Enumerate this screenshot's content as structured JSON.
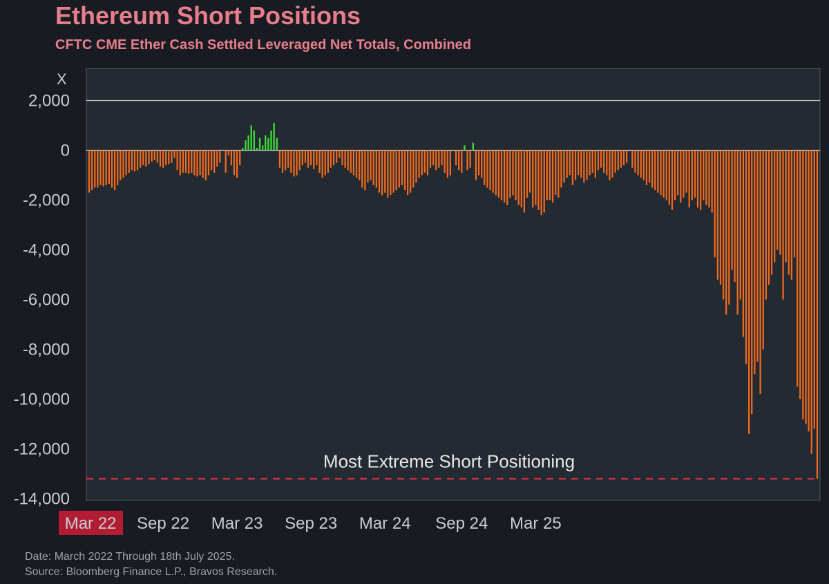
{
  "title": "Ethereum Short Positions",
  "subtitle": "CFTC CME Ether Cash Settled Leveraged Net Totals, Combined",
  "footer": {
    "date": "Date: March 2022 Through 18th July 2025.",
    "source": "Source: Bloomberg Finance L.P., Bravos Research."
  },
  "colors": {
    "background": "#181c22",
    "plot_background": "#242a31",
    "title": "#e87e8c",
    "negative_bar": "#ef6a1e",
    "positive_bar": "#3ee03a",
    "reference_line": "#d83048",
    "highlight_tick_bg": "#b31d34"
  },
  "chart_data": {
    "type": "bar",
    "title": "Ethereum Short Positions",
    "subtitle": "CFTC CME Ether Cash Settled Leveraged Net Totals, Combined",
    "ylabel": "X",
    "ylim": [
      -14000,
      3000
    ],
    "yticks": [
      2000,
      0,
      -2000,
      -4000,
      -6000,
      -8000,
      -10000,
      -12000,
      -14000
    ],
    "ytick_labels": [
      "2,000",
      "0",
      "-2,000",
      "-4,000",
      "-6,000",
      "-8,000",
      "-10,000",
      "-12,000",
      "-14,000"
    ],
    "xticks": [
      {
        "label": "Mar 22",
        "index": 0,
        "highlighted": true
      },
      {
        "label": "Sep 22",
        "index": 26
      },
      {
        "label": "Mar 23",
        "index": 52
      },
      {
        "label": "Sep 23",
        "index": 78
      },
      {
        "label": "Mar 24",
        "index": 104
      },
      {
        "label": "Sep 24",
        "index": 131
      },
      {
        "label": "Mar 25",
        "index": 157
      }
    ],
    "annotation": {
      "text": "Most Extreme Short Positioning",
      "value": -13200
    },
    "weekly_values": [
      -1700,
      -1600,
      -1500,
      -1500,
      -1400,
      -1450,
      -1400,
      -1350,
      -1500,
      -1600,
      -1400,
      -1200,
      -1100,
      -1000,
      -900,
      -800,
      -850,
      -800,
      -700,
      -600,
      -650,
      -550,
      -450,
      -400,
      -500,
      -650,
      -700,
      -600,
      -550,
      -500,
      -300,
      -800,
      -1000,
      -900,
      -900,
      -950,
      -900,
      -1000,
      -1050,
      -1000,
      -1100,
      -1200,
      -1000,
      -800,
      -900,
      -650,
      -500,
      0,
      -900,
      -200,
      -600,
      -1000,
      -1100,
      -600,
      100,
      400,
      600,
      1000,
      800,
      100,
      500,
      200,
      600,
      500,
      800,
      1100,
      500,
      -700,
      -900,
      -800,
      -700,
      -900,
      -1050,
      -1000,
      -800,
      -600,
      -500,
      -700,
      -600,
      -750,
      -600,
      -900,
      -1100,
      -1000,
      -900,
      -700,
      -600,
      -500,
      -300,
      -600,
      -700,
      -800,
      -900,
      -1000,
      -1100,
      -1200,
      -1500,
      -1600,
      -1300,
      -1200,
      -1400,
      -1500,
      -1700,
      -1800,
      -1700,
      -1900,
      -1800,
      -1700,
      -1600,
      -1500,
      -1400,
      -1600,
      -1800,
      -1700,
      -1500,
      -1300,
      -1100,
      -1000,
      -900,
      -1000,
      -700,
      -600,
      -800,
      -700,
      -600,
      -900,
      -1100,
      -1000,
      0,
      -600,
      -800,
      -900,
      200,
      -800,
      -700,
      300,
      -1200,
      -1000,
      -1100,
      -1400,
      -1500,
      -1600,
      -1700,
      -1800,
      -1900,
      -2000,
      -2100,
      -2200,
      -1900,
      -1800,
      -2000,
      -2200,
      -2300,
      -2500,
      -1900,
      -1700,
      -2300,
      -2200,
      -2400,
      -2600,
      -2500,
      -2000,
      -2000,
      -2100,
      -1800,
      -1900,
      -1500,
      -1300,
      -1100,
      -1000,
      -1400,
      -1200,
      -1000,
      -1100,
      -1300,
      -1200,
      -1000,
      -900,
      -1100,
      -800,
      -700,
      -900,
      -1000,
      -1200,
      -1100,
      -900,
      -800,
      -700,
      -600,
      -500,
      0,
      -700,
      -900,
      -1000,
      -1100,
      -1200,
      -1400,
      -1300,
      -1500,
      -1600,
      -1700,
      -1800,
      -1900,
      -2000,
      -2200,
      -2400,
      -2000,
      -1800,
      -2100,
      -1900,
      -1700,
      -2300,
      -2000,
      -1900,
      -2300,
      -2400,
      -2000,
      -2200,
      -2300,
      -2500,
      -4300,
      -5200,
      -5400,
      -6000,
      -6600,
      -6200,
      -4800,
      -5300,
      -6600,
      -6000,
      -7500,
      -8600,
      -11400,
      -10600,
      -9000,
      -8500,
      -9800,
      -8000,
      -6000,
      -5400,
      -5000,
      -4500,
      -4000,
      -4200,
      -6000,
      -4500,
      -5000,
      -5200,
      -4300,
      -9500,
      -10000,
      -10800,
      -11000,
      -11300,
      -12200,
      -11200,
      -13200
    ]
  }
}
